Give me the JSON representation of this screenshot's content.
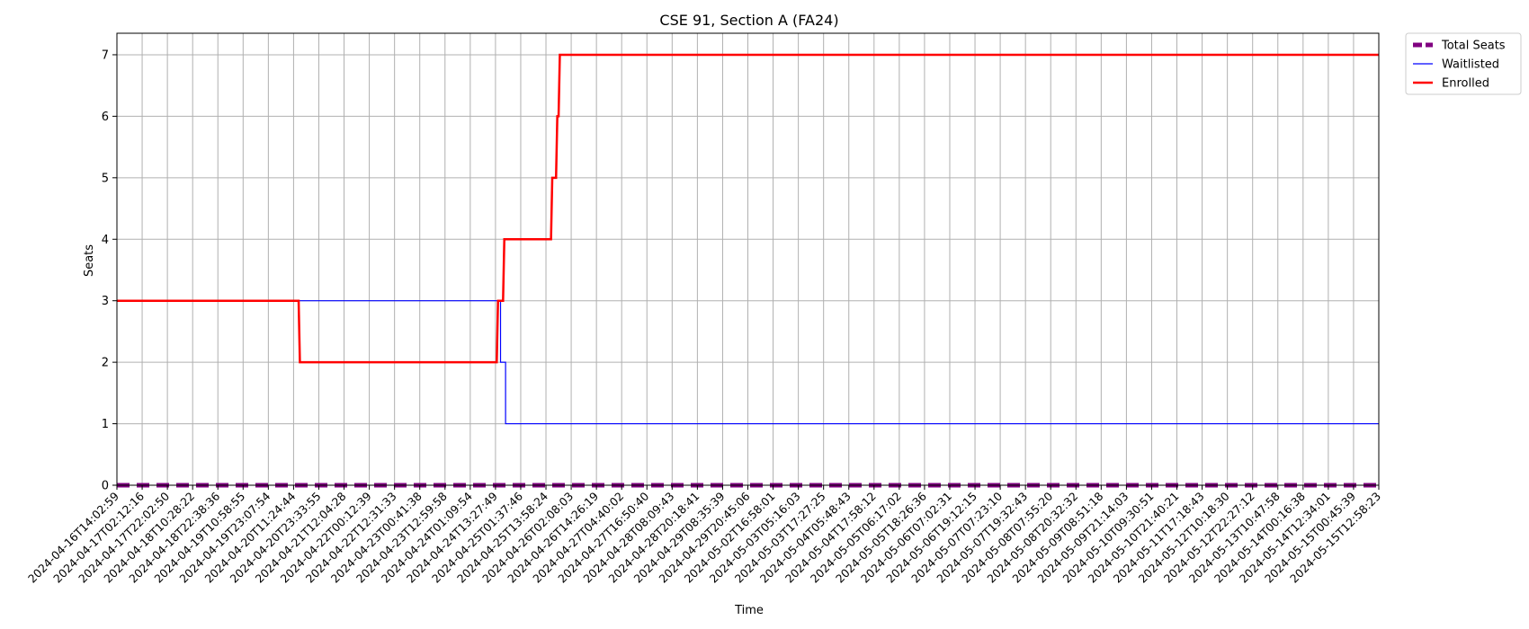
{
  "chart_data": {
    "type": "line",
    "title": "CSE 91, Section A (FA24)",
    "xlabel": "Time",
    "ylabel": "Seats",
    "ylim": [
      0,
      7.35
    ],
    "yticks": [
      0,
      1,
      2,
      3,
      4,
      5,
      6,
      7
    ],
    "grid": true,
    "legend_position": "outside-top-right",
    "x_ticks": [
      "2024-04-16T14:02:59",
      "2024-04-17T02:12:16",
      "2024-04-17T22:02:50",
      "2024-04-18T10:28:22",
      "2024-04-18T22:38:36",
      "2024-04-19T10:58:55",
      "2024-04-19T23:07:54",
      "2024-04-20T11:24:44",
      "2024-04-20T23:33:55",
      "2024-04-21T12:04:28",
      "2024-04-22T00:12:39",
      "2024-04-22T12:31:33",
      "2024-04-23T00:41:38",
      "2024-04-23T12:59:58",
      "2024-04-24T01:09:54",
      "2024-04-24T13:27:49",
      "2024-04-25T01:37:46",
      "2024-04-25T13:58:24",
      "2024-04-26T02:08:03",
      "2024-04-26T14:26:19",
      "2024-04-27T04:40:02",
      "2024-04-27T16:50:40",
      "2024-04-28T08:09:43",
      "2024-04-28T20:18:41",
      "2024-04-29T08:35:39",
      "2024-04-29T20:45:06",
      "2024-05-02T16:58:01",
      "2024-05-03T05:16:03",
      "2024-05-03T17:27:25",
      "2024-05-04T05:48:43",
      "2024-05-04T17:58:12",
      "2024-05-05T06:17:02",
      "2024-05-05T18:26:36",
      "2024-05-06T07:02:31",
      "2024-05-06T19:12:15",
      "2024-05-07T07:23:10",
      "2024-05-07T19:32:43",
      "2024-05-08T07:55:20",
      "2024-05-08T20:32:32",
      "2024-05-09T08:51:18",
      "2024-05-09T21:14:03",
      "2024-05-10T09:30:51",
      "2024-05-10T21:40:21",
      "2024-05-11T17:18:43",
      "2024-05-12T10:18:30",
      "2024-05-12T22:27:12",
      "2024-05-13T10:47:58",
      "2024-05-14T00:16:38",
      "2024-05-14T12:34:01",
      "2024-05-15T00:45:39",
      "2024-05-15T12:58:23"
    ],
    "series": [
      {
        "name": "Total Seats",
        "color": "#800080",
        "style": "dashed",
        "steps": [
          [
            0,
            0
          ],
          [
            50,
            0
          ]
        ]
      },
      {
        "name": "Waitlisted",
        "color": "#0000ff",
        "style": "solid",
        "steps": [
          [
            0,
            3
          ],
          [
            15.2,
            3
          ],
          [
            15.2,
            2
          ],
          [
            15.4,
            2
          ],
          [
            15.4,
            1
          ],
          [
            50,
            1
          ]
        ]
      },
      {
        "name": "Enrolled",
        "color": "#ff0000",
        "style": "solid",
        "steps": [
          [
            0,
            3
          ],
          [
            7.2,
            3
          ],
          [
            7.2,
            3
          ],
          [
            7.25,
            2
          ],
          [
            15.05,
            2
          ],
          [
            15.1,
            3
          ],
          [
            15.3,
            3
          ],
          [
            15.35,
            4
          ],
          [
            17.2,
            4
          ],
          [
            17.25,
            5
          ],
          [
            17.4,
            5
          ],
          [
            17.45,
            6
          ],
          [
            17.5,
            6
          ],
          [
            17.55,
            7
          ],
          [
            50,
            7
          ]
        ]
      }
    ]
  }
}
